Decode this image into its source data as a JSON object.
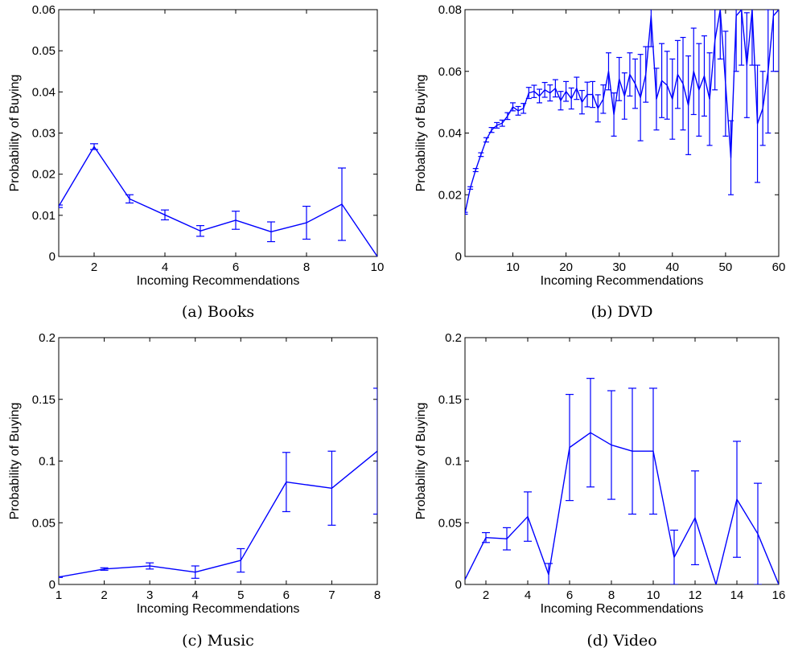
{
  "chart_data": [
    {
      "type": "line",
      "caption": "(a) Books",
      "xlabel": "Incoming Recommendations",
      "ylabel": "Probability of Buying",
      "xlim": [
        1,
        10
      ],
      "ylim": [
        0,
        0.06
      ],
      "xticks": [
        2,
        4,
        6,
        8,
        10
      ],
      "yticks": [
        0,
        0.01,
        0.02,
        0.03,
        0.04,
        0.05,
        0.06
      ],
      "ytick_labels": [
        "0",
        "0.01",
        "0.02",
        "0.03",
        "0.04",
        "0.05",
        "0.06"
      ],
      "series": [
        {
          "color": "#0000ff",
          "x": [
            1,
            2,
            3,
            4,
            5,
            6,
            7,
            8,
            9,
            10
          ],
          "values": [
            0.0122,
            0.0267,
            0.014,
            0.0101,
            0.0062,
            0.0088,
            0.006,
            0.0082,
            0.0127,
            0.0
          ],
          "error": [
            0.0003,
            0.0007,
            0.001,
            0.0012,
            0.0013,
            0.0022,
            0.0024,
            0.004,
            0.0088,
            0.0
          ]
        }
      ]
    },
    {
      "type": "line",
      "caption": "(b) DVD",
      "xlabel": "Incoming Recommendations",
      "ylabel": "Probability of Buying",
      "xlim": [
        1,
        60
      ],
      "ylim": [
        0,
        0.08
      ],
      "xticks": [
        10,
        20,
        30,
        40,
        50,
        60
      ],
      "yticks": [
        0,
        0.02,
        0.04,
        0.06,
        0.08
      ],
      "ytick_labels": [
        "0",
        "0.02",
        "0.04",
        "0.06",
        "0.08"
      ],
      "series": [
        {
          "color": "#0000ff",
          "x": [
            1,
            2,
            3,
            4,
            5,
            6,
            7,
            8,
            9,
            10,
            11,
            12,
            13,
            14,
            15,
            16,
            17,
            18,
            19,
            20,
            21,
            22,
            23,
            24,
            25,
            26,
            27,
            28,
            29,
            30,
            31,
            32,
            33,
            34,
            35,
            36,
            37,
            38,
            39,
            40,
            41,
            42,
            43,
            44,
            45,
            46,
            47,
            48,
            49,
            50,
            51,
            52,
            53,
            54,
            55,
            56,
            57,
            58,
            59,
            60
          ],
          "values": [
            0.014,
            0.0222,
            0.028,
            0.033,
            0.0378,
            0.041,
            0.0425,
            0.0432,
            0.0455,
            0.0485,
            0.0472,
            0.048,
            0.053,
            0.0535,
            0.052,
            0.054,
            0.053,
            0.0545,
            0.0505,
            0.0535,
            0.0512,
            0.0545,
            0.05,
            0.0525,
            0.0525,
            0.048,
            0.051,
            0.06,
            0.046,
            0.0575,
            0.052,
            0.059,
            0.056,
            0.0515,
            0.059,
            0.078,
            0.051,
            0.057,
            0.0555,
            0.051,
            0.059,
            0.056,
            0.049,
            0.06,
            0.054,
            0.0585,
            0.051,
            0.07,
            0.08,
            0.056,
            0.032,
            0.078,
            0.08,
            0.062,
            0.08,
            0.043,
            0.048,
            0.06,
            0.078,
            0.08
          ],
          "error": [
            0.0003,
            0.0004,
            0.0005,
            0.0006,
            0.0007,
            0.0008,
            0.0009,
            0.001,
            0.0011,
            0.0013,
            0.0014,
            0.0016,
            0.0018,
            0.002,
            0.0022,
            0.0024,
            0.0026,
            0.0028,
            0.003,
            0.0032,
            0.0034,
            0.0036,
            0.0038,
            0.004,
            0.0042,
            0.0044,
            0.0046,
            0.006,
            0.007,
            0.007,
            0.0075,
            0.007,
            0.008,
            0.014,
            0.009,
            0.01,
            0.01,
            0.012,
            0.011,
            0.013,
            0.011,
            0.015,
            0.016,
            0.014,
            0.015,
            0.013,
            0.015,
            0.016,
            0.016,
            0.017,
            0.012,
            0.018,
            0.018,
            0.017,
            0.018,
            0.019,
            0.012,
            0.02,
            0.018,
            0.02
          ]
        }
      ]
    },
    {
      "type": "line",
      "caption": "(c) Music",
      "xlabel": "Incoming Recommendations",
      "ylabel": "Probability of Buying",
      "xlim": [
        1,
        8
      ],
      "ylim": [
        0,
        0.2
      ],
      "xticks": [
        1,
        2,
        3,
        4,
        5,
        6,
        7,
        8
      ],
      "yticks": [
        0,
        0.05,
        0.1,
        0.15,
        0.2
      ],
      "ytick_labels": [
        "0",
        "0.05",
        "0.1",
        "0.15",
        "0.2"
      ],
      "series": [
        {
          "color": "#0000ff",
          "x": [
            1,
            2,
            3,
            4,
            5,
            6,
            7,
            8
          ],
          "values": [
            0.006,
            0.0125,
            0.015,
            0.01,
            0.0195,
            0.083,
            0.078,
            0.108
          ],
          "error": [
            0.0003,
            0.001,
            0.0025,
            0.005,
            0.0095,
            0.024,
            0.03,
            0.051
          ]
        }
      ]
    },
    {
      "type": "line",
      "caption": "(d) Video",
      "xlabel": "Incoming Recommendations",
      "ylabel": "Probability of Buying",
      "xlim": [
        1,
        16
      ],
      "ylim": [
        0,
        0.2
      ],
      "xticks": [
        2,
        4,
        6,
        8,
        10,
        12,
        14,
        16
      ],
      "yticks": [
        0,
        0.05,
        0.1,
        0.15,
        0.2
      ],
      "ytick_labels": [
        "0",
        "0.05",
        "0.1",
        "0.15",
        "0.2"
      ],
      "series": [
        {
          "color": "#0000ff",
          "x": [
            1,
            2,
            3,
            4,
            5,
            6,
            7,
            8,
            9,
            10,
            11,
            12,
            13,
            14,
            15,
            16
          ],
          "values": [
            0.004,
            0.038,
            0.037,
            0.055,
            0.008,
            0.111,
            0.123,
            0.113,
            0.108,
            0.108,
            0.022,
            0.054,
            0.0,
            0.069,
            0.041,
            0.0
          ],
          "error": [
            0.0,
            0.004,
            0.009,
            0.02,
            0.009,
            0.043,
            0.044,
            0.044,
            0.051,
            0.051,
            0.022,
            0.038,
            0.0,
            0.047,
            0.041,
            0.0
          ]
        }
      ]
    }
  ]
}
